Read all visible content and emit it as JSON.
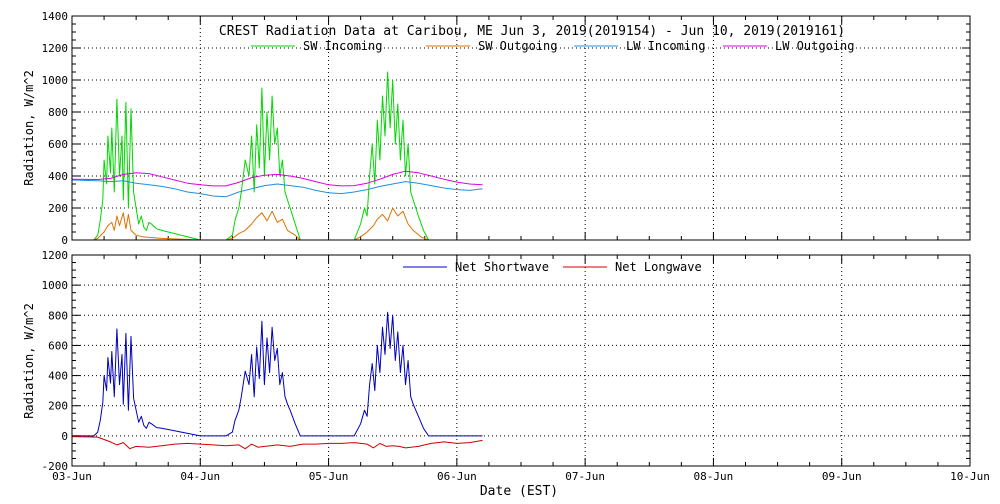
{
  "chart_data": [
    {
      "type": "line",
      "title": "CREST Radiation Data at Caribou, ME   Jun  3, 2019(2019154) - Jun 10, 2019(2019161)",
      "xlabel": "",
      "ylabel": "Radiation, W/m^2",
      "xlim": [
        0,
        7
      ],
      "ylim": [
        0,
        1400
      ],
      "yticks": [
        0,
        200,
        400,
        600,
        800,
        1000,
        1200,
        1400
      ],
      "grid": true,
      "legend_position": "top",
      "series": [
        {
          "name": "SW Incoming",
          "color": "#00d800",
          "x": [
            0.0,
            0.17,
            0.2,
            0.22,
            0.24,
            0.25,
            0.27,
            0.28,
            0.3,
            0.31,
            0.33,
            0.35,
            0.37,
            0.39,
            0.4,
            0.42,
            0.44,
            0.46,
            0.48,
            0.5,
            0.52,
            0.54,
            0.56,
            0.58,
            0.6,
            0.62,
            0.66,
            0.7,
            1.0,
            1.2,
            1.25,
            1.27,
            1.3,
            1.32,
            1.35,
            1.38,
            1.4,
            1.42,
            1.44,
            1.46,
            1.48,
            1.5,
            1.52,
            1.54,
            1.56,
            1.58,
            1.6,
            1.62,
            1.64,
            1.66,
            1.68,
            1.7,
            1.74,
            1.78,
            2.0,
            2.2,
            2.25,
            2.28,
            2.3,
            2.32,
            2.34,
            2.36,
            2.38,
            2.4,
            2.42,
            2.44,
            2.46,
            2.48,
            2.5,
            2.52,
            2.54,
            2.56,
            2.58,
            2.6,
            2.62,
            2.64,
            2.66,
            2.7,
            2.74,
            2.78,
            3.0,
            3.2
          ],
          "y": [
            0,
            0,
            30,
            120,
            250,
            500,
            350,
            650,
            420,
            700,
            300,
            880,
            400,
            650,
            250,
            860,
            200,
            820,
            300,
            200,
            100,
            150,
            80,
            60,
            110,
            100,
            70,
            60,
            0,
            0,
            30,
            120,
            200,
            300,
            500,
            400,
            650,
            300,
            720,
            450,
            950,
            400,
            800,
            500,
            900,
            600,
            700,
            400,
            500,
            300,
            250,
            200,
            100,
            0,
            0,
            0,
            100,
            200,
            150,
            400,
            600,
            350,
            750,
            500,
            900,
            650,
            1050,
            700,
            1000,
            600,
            850,
            500,
            750,
            400,
            600,
            300,
            250,
            150,
            60,
            0,
            0,
            0
          ]
        },
        {
          "name": "SW Outgoing",
          "color": "#e07000",
          "x": [
            0.0,
            0.17,
            0.2,
            0.25,
            0.28,
            0.31,
            0.33,
            0.35,
            0.37,
            0.4,
            0.42,
            0.44,
            0.46,
            0.5,
            0.55,
            0.62,
            0.7,
            1.0,
            1.2,
            1.25,
            1.3,
            1.35,
            1.4,
            1.44,
            1.48,
            1.52,
            1.56,
            1.6,
            1.64,
            1.68,
            1.74,
            1.78,
            2.0,
            2.2,
            2.25,
            2.3,
            2.35,
            2.38,
            2.42,
            2.46,
            2.5,
            2.54,
            2.58,
            2.62,
            2.66,
            2.72,
            2.78,
            3.0,
            3.2
          ],
          "y": [
            0,
            0,
            10,
            50,
            90,
            110,
            60,
            150,
            90,
            170,
            70,
            160,
            60,
            30,
            20,
            15,
            10,
            0,
            0,
            10,
            40,
            60,
            100,
            140,
            170,
            120,
            180,
            110,
            130,
            60,
            30,
            0,
            0,
            0,
            20,
            50,
            90,
            130,
            160,
            120,
            200,
            150,
            180,
            100,
            60,
            20,
            0,
            0,
            0
          ]
        },
        {
          "name": "LW Incoming",
          "color": "#2090e0",
          "x": [
            0.0,
            0.2,
            0.3,
            0.4,
            0.5,
            0.6,
            0.7,
            0.8,
            0.9,
            1.0,
            1.1,
            1.2,
            1.3,
            1.4,
            1.5,
            1.6,
            1.7,
            1.8,
            1.9,
            2.0,
            2.1,
            2.2,
            2.3,
            2.4,
            2.5,
            2.6,
            2.7,
            2.8,
            2.9,
            3.0,
            3.1,
            3.2
          ],
          "y": [
            375,
            370,
            365,
            370,
            355,
            345,
            335,
            320,
            300,
            290,
            275,
            270,
            300,
            320,
            340,
            350,
            340,
            330,
            310,
            295,
            290,
            300,
            315,
            335,
            350,
            365,
            355,
            340,
            325,
            315,
            310,
            320
          ]
        },
        {
          "name": "LW Outgoing",
          "color": "#e000e0",
          "x": [
            0.0,
            0.2,
            0.3,
            0.4,
            0.5,
            0.6,
            0.7,
            0.8,
            0.9,
            1.0,
            1.1,
            1.2,
            1.3,
            1.4,
            1.5,
            1.6,
            1.7,
            1.8,
            1.9,
            2.0,
            2.1,
            2.2,
            2.3,
            2.4,
            2.5,
            2.6,
            2.7,
            2.8,
            2.9,
            3.0,
            3.1,
            3.2
          ],
          "y": [
            380,
            378,
            385,
            410,
            420,
            415,
            395,
            375,
            355,
            345,
            338,
            338,
            360,
            390,
            405,
            410,
            400,
            385,
            365,
            345,
            338,
            340,
            355,
            380,
            410,
            430,
            420,
            400,
            380,
            362,
            350,
            345
          ]
        }
      ]
    },
    {
      "type": "line",
      "title": "",
      "xlabel": "Date (EST)",
      "ylabel": "Radiation, W/m^2",
      "xlim": [
        0,
        7
      ],
      "ylim": [
        -200,
        1200
      ],
      "yticks": [
        -200,
        0,
        200,
        400,
        600,
        800,
        1000,
        1200
      ],
      "categories": [
        "03-Jun",
        "04-Jun",
        "05-Jun",
        "06-Jun",
        "07-Jun",
        "08-Jun",
        "09-Jun",
        "10-Jun"
      ],
      "grid": true,
      "legend_position": "top",
      "series": [
        {
          "name": "Net Shortwave",
          "color": "#0000c0",
          "x": [
            0.0,
            0.17,
            0.2,
            0.22,
            0.24,
            0.25,
            0.27,
            0.28,
            0.3,
            0.31,
            0.33,
            0.35,
            0.37,
            0.39,
            0.4,
            0.42,
            0.44,
            0.46,
            0.48,
            0.5,
            0.52,
            0.54,
            0.56,
            0.58,
            0.6,
            0.62,
            0.66,
            0.7,
            1.0,
            1.2,
            1.25,
            1.27,
            1.3,
            1.32,
            1.35,
            1.38,
            1.4,
            1.42,
            1.44,
            1.46,
            1.48,
            1.5,
            1.52,
            1.54,
            1.56,
            1.58,
            1.6,
            1.62,
            1.64,
            1.66,
            1.68,
            1.7,
            1.74,
            1.78,
            2.0,
            2.2,
            2.25,
            2.28,
            2.3,
            2.32,
            2.34,
            2.36,
            2.38,
            2.4,
            2.42,
            2.44,
            2.46,
            2.48,
            2.5,
            2.52,
            2.54,
            2.56,
            2.58,
            2.6,
            2.62,
            2.64,
            2.66,
            2.7,
            2.74,
            2.78,
            3.0,
            3.2
          ],
          "y": [
            0,
            0,
            25,
            100,
            220,
            400,
            300,
            520,
            350,
            560,
            260,
            710,
            340,
            540,
            210,
            680,
            170,
            660,
            250,
            170,
            90,
            130,
            70,
            50,
            90,
            80,
            55,
            50,
            0,
            0,
            25,
            100,
            170,
            260,
            430,
            340,
            540,
            260,
            590,
            380,
            760,
            340,
            650,
            420,
            720,
            500,
            580,
            340,
            420,
            260,
            210,
            170,
            80,
            0,
            0,
            0,
            80,
            170,
            130,
            340,
            480,
            300,
            600,
            420,
            720,
            540,
            820,
            580,
            800,
            500,
            690,
            420,
            600,
            340,
            500,
            260,
            210,
            130,
            50,
            0,
            0,
            0
          ]
        },
        {
          "name": "Net Longwave",
          "color": "#d00000",
          "x": [
            0.0,
            0.2,
            0.3,
            0.35,
            0.4,
            0.45,
            0.5,
            0.6,
            0.7,
            0.8,
            0.9,
            1.0,
            1.1,
            1.2,
            1.3,
            1.35,
            1.4,
            1.45,
            1.5,
            1.55,
            1.6,
            1.7,
            1.8,
            1.9,
            2.0,
            2.1,
            2.2,
            2.3,
            2.35,
            2.4,
            2.45,
            2.5,
            2.55,
            2.6,
            2.7,
            2.8,
            2.9,
            3.0,
            3.1,
            3.2
          ],
          "y": [
            -5,
            -8,
            -40,
            -60,
            -45,
            -85,
            -70,
            -75,
            -65,
            -55,
            -50,
            -55,
            -60,
            -65,
            -60,
            -85,
            -55,
            -75,
            -70,
            -65,
            -60,
            -70,
            -55,
            -55,
            -50,
            -50,
            -45,
            -55,
            -80,
            -50,
            -70,
            -65,
            -70,
            -80,
            -70,
            -50,
            -40,
            -50,
            -45,
            -30
          ]
        }
      ]
    }
  ]
}
